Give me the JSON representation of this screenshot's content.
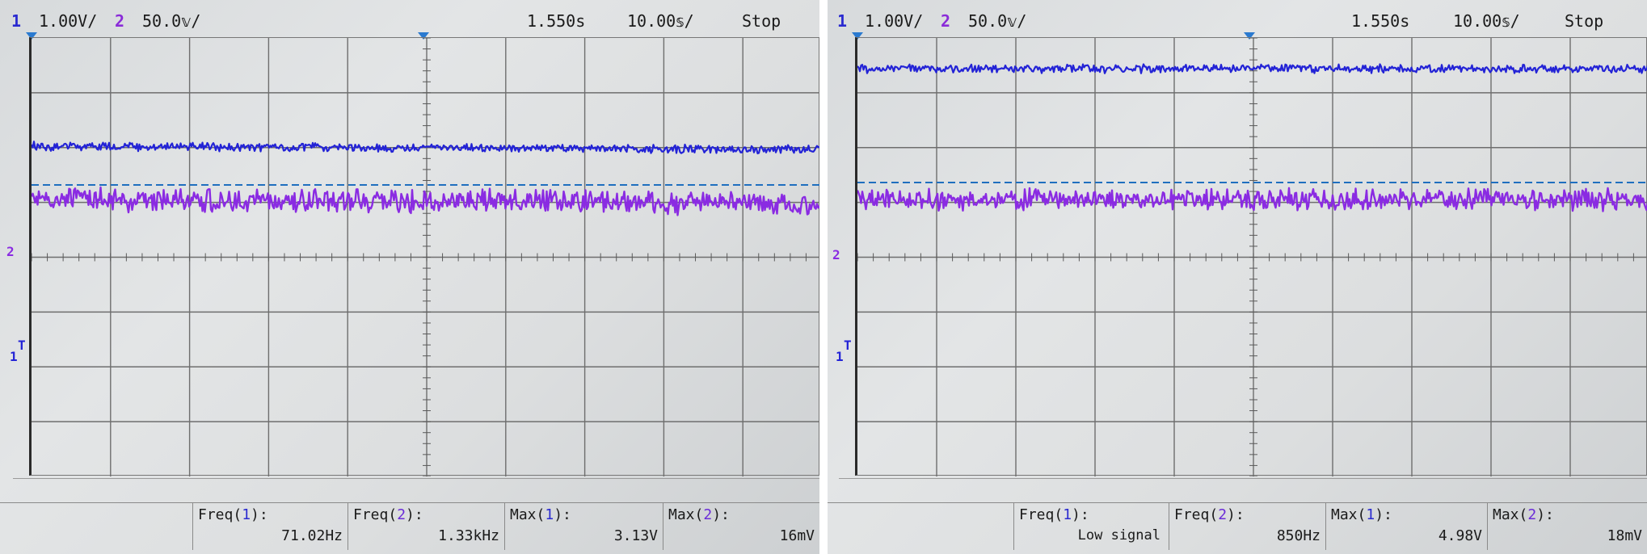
{
  "screens": [
    {
      "header": {
        "ch1_number": "1",
        "ch1_scale": "1.00V/",
        "ch2_number": "2",
        "ch2_scale": "50.0𝕧/",
        "time_position": "1.550s",
        "time_scale": "10.00𝕤/",
        "run_state": "Stop"
      },
      "markers": {
        "ch2_ground_label": "2",
        "ch1_trigger_label": "T",
        "ch1_ground_label": "1"
      },
      "traces": {
        "ch1_color": "#2323d6",
        "ch2_color": "#8a2be2",
        "trigger_level_color": "#1f6fbf"
      },
      "measurements": [
        {
          "label": "Freq",
          "channel": "1",
          "value": "71.02Hz"
        },
        {
          "label": "Freq",
          "channel": "2",
          "value": "1.33kHz"
        },
        {
          "label": "Max",
          "channel": "1",
          "value": "3.13V"
        },
        {
          "label": "Max",
          "channel": "2",
          "value": "16mV"
        }
      ]
    },
    {
      "header": {
        "ch1_number": "1",
        "ch1_scale": "1.00V/",
        "ch2_number": "2",
        "ch2_scale": "50.0𝕧/",
        "time_position": "1.550s",
        "time_scale": "10.00𝕤/",
        "run_state": "Stop"
      },
      "markers": {
        "ch2_ground_label": "2",
        "ch1_trigger_label": "T",
        "ch1_ground_label": "1"
      },
      "traces": {
        "ch1_color": "#2323d6",
        "ch2_color": "#8a2be2",
        "trigger_level_color": "#1f6fbf"
      },
      "measurements": [
        {
          "label": "Freq",
          "channel": "1",
          "value": "Low signal"
        },
        {
          "label": "Freq",
          "channel": "2",
          "value": "850Hz"
        },
        {
          "label": "Max",
          "channel": "1",
          "value": "4.98V"
        },
        {
          "label": "Max",
          "channel": "2",
          "value": "18mV"
        }
      ]
    }
  ]
}
